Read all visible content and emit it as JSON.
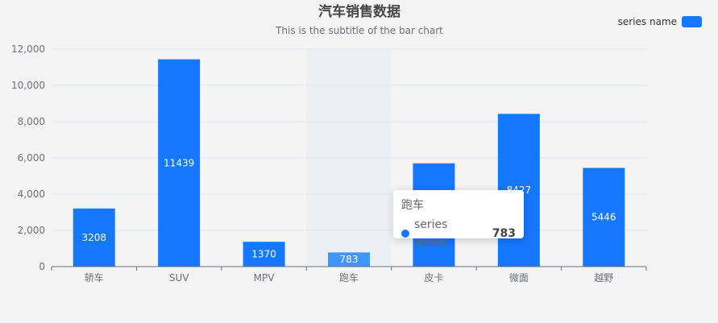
{
  "colors": {
    "bar": "#1677ff",
    "bar_hover": "#4096ff",
    "axis": "#6e7079",
    "grid": "#e0e6f1",
    "highlight": "#eceff4"
  },
  "chart_data": {
    "type": "bar",
    "title": "汽车销售数据",
    "subtitle": "This is the subtitle of the bar chart",
    "categories": [
      "轿车",
      "SUV",
      "MPV",
      "跑车",
      "皮卡",
      "微面",
      "越野"
    ],
    "series": [
      {
        "name": "series name",
        "values": [
          3208,
          11439,
          1370,
          783,
          5700,
          8427,
          5446
        ],
        "labels": [
          "3208",
          "11439",
          "1370",
          "783",
          "",
          "8427",
          "5446"
        ]
      }
    ],
    "ylim": [
      0,
      12000
    ],
    "yticks": [
      "0",
      "2,000",
      "4,000",
      "6,000",
      "8,000",
      "10,000",
      "12,000"
    ],
    "legend_position": "top-right",
    "grid": true,
    "highlighted_category": "跑车"
  },
  "tooltip": {
    "title": "跑车",
    "series_name": "series name",
    "value": "783"
  }
}
